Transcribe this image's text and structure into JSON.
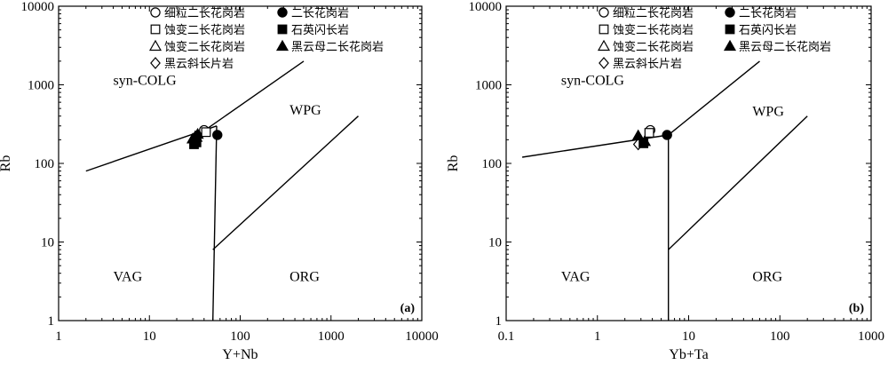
{
  "legend": [
    {
      "label": "细粒二长花岗岩",
      "marker": "circle-open"
    },
    {
      "label": "蚀变二长花岗岩",
      "marker": "square-open"
    },
    {
      "label": "蚀变二长花岗岩",
      "marker": "triangle-open"
    },
    {
      "label": "黑云斜长片岩",
      "marker": "diamond-open"
    },
    {
      "label": "二长花岗岩",
      "marker": "circle-filled"
    },
    {
      "label": "石英闪长岩",
      "marker": "square-filled"
    },
    {
      "label": "黑云母二长花岗岩",
      "marker": "triangle-filled"
    }
  ],
  "chart_data": [
    {
      "type": "scatter",
      "panel_label": "(a)",
      "xlabel": "Y+Nb",
      "ylabel": "Rb",
      "xscale": "log",
      "yscale": "log",
      "xlim": [
        1,
        10000
      ],
      "ylim": [
        1,
        10000
      ],
      "xticks": [
        1,
        10,
        100,
        1000,
        10000
      ],
      "xtick_labels": [
        "1",
        "10",
        "100",
        "1000",
        "10000"
      ],
      "yticks": [
        1,
        10,
        100,
        1000,
        10000
      ],
      "ytick_labels": [
        "1",
        "10",
        "100",
        "1000",
        "10000"
      ],
      "regions": [
        {
          "label": "syn-COLG",
          "x": 4,
          "y": 1000
        },
        {
          "label": "WPG",
          "x": 350,
          "y": 420
        },
        {
          "label": "VAG",
          "x": 4,
          "y": 3.2
        },
        {
          "label": "ORG",
          "x": 350,
          "y": 3.2
        }
      ],
      "boundaries": [
        [
          [
            2,
            80
          ],
          [
            55,
            300
          ]
        ],
        [
          [
            40,
            260
          ],
          [
            500,
            2000
          ]
        ],
        [
          [
            55,
            300
          ],
          [
            50,
            1
          ]
        ],
        [
          [
            50,
            8
          ],
          [
            2000,
            400
          ]
        ]
      ],
      "series": [
        {
          "name": "细粒二长花岗岩",
          "marker": "circle-open",
          "points": [
            [
              40,
              265
            ]
          ]
        },
        {
          "name": "蚀变二长花岗岩",
          "marker": "square-open",
          "points": [
            [
              42,
              250
            ]
          ]
        },
        {
          "name": "蚀变二长花岗岩",
          "marker": "triangle-open",
          "points": [
            [
              33,
              215
            ]
          ]
        },
        {
          "name": "黑云斜长片岩",
          "marker": "diamond-open",
          "points": [
            [
              31,
              190
            ]
          ]
        },
        {
          "name": "二长花岗岩",
          "marker": "circle-filled",
          "points": [
            [
              56,
              230
            ]
          ]
        },
        {
          "name": "石英闪长岩",
          "marker": "square-filled",
          "points": [
            [
              31,
              175
            ],
            [
              33,
              185
            ]
          ]
        },
        {
          "name": "黑云母二长花岗岩",
          "marker": "triangle-filled",
          "points": [
            [
              32,
              220
            ],
            [
              34,
              235
            ],
            [
              30,
              205
            ]
          ]
        }
      ]
    },
    {
      "type": "scatter",
      "panel_label": "(b)",
      "xlabel": "Yb+Ta",
      "ylabel": "Rb",
      "xscale": "log",
      "yscale": "log",
      "xlim": [
        0.1,
        1000
      ],
      "ylim": [
        1,
        10000
      ],
      "xticks": [
        0.1,
        1,
        10,
        100,
        1000
      ],
      "xtick_labels": [
        "0.1",
        "1",
        "10",
        "100",
        "1000"
      ],
      "yticks": [
        1,
        10,
        100,
        1000,
        10000
      ],
      "ytick_labels": [
        "1",
        "10",
        "100",
        "1000",
        "10000"
      ],
      "regions": [
        {
          "label": "syn-COLG",
          "x": 0.4,
          "y": 1000
        },
        {
          "label": "WPG",
          "x": 50,
          "y": 400
        },
        {
          "label": "VAG",
          "x": 0.4,
          "y": 3.2
        },
        {
          "label": "ORG",
          "x": 50,
          "y": 3.2
        }
      ],
      "boundaries": [
        [
          [
            0.15,
            120
          ],
          [
            6,
            230
          ]
        ],
        [
          [
            6,
            230
          ],
          [
            60,
            2000
          ]
        ],
        [
          [
            6,
            230
          ],
          [
            6,
            1
          ]
        ],
        [
          [
            6,
            8
          ],
          [
            200,
            400
          ]
        ]
      ],
      "series": [
        {
          "name": "细粒二长花岗岩",
          "marker": "circle-open",
          "points": [
            [
              3.8,
              265
            ]
          ]
        },
        {
          "name": "蚀变二长花岗岩",
          "marker": "square-open",
          "points": [
            [
              3.7,
              245
            ]
          ]
        },
        {
          "name": "蚀变二长花岗岩",
          "marker": "triangle-open",
          "points": [
            [
              3.0,
              195
            ]
          ]
        },
        {
          "name": "黑云斜长片岩",
          "marker": "diamond-open",
          "points": [
            [
              2.8,
              175
            ]
          ]
        },
        {
          "name": "二长花岗岩",
          "marker": "circle-filled",
          "points": [
            [
              5.8,
              230
            ]
          ]
        },
        {
          "name": "石英闪长岩",
          "marker": "square-filled",
          "points": [
            [
              3.2,
              180
            ]
          ]
        },
        {
          "name": "黑云母二长花岗岩",
          "marker": "triangle-filled",
          "points": [
            [
              2.8,
              225
            ],
            [
              3.3,
              190
            ]
          ]
        }
      ]
    }
  ]
}
